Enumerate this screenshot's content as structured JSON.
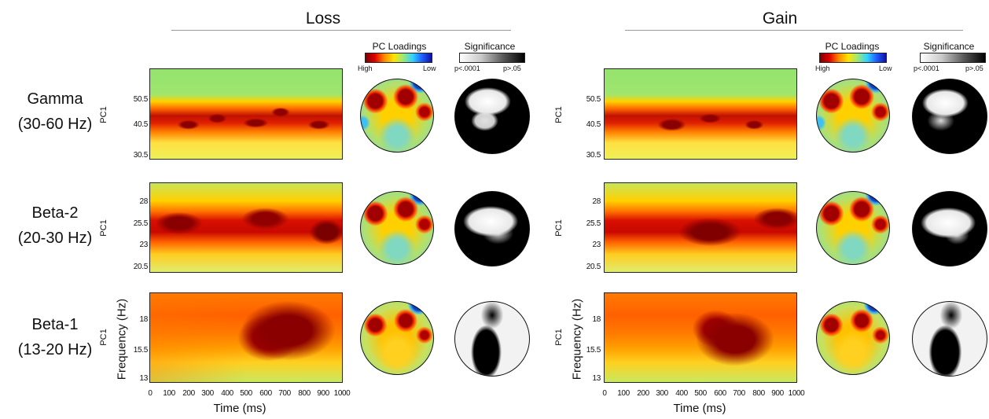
{
  "conditions": [
    {
      "title": "Loss"
    },
    {
      "title": "Gain"
    }
  ],
  "bands": [
    {
      "name": "Gamma",
      "range": "(30-60 Hz)",
      "yticks": [
        "50.5",
        "40.5",
        "30.5"
      ],
      "ylabel": "PC1"
    },
    {
      "name": "Beta-2",
      "range": "(20-30 Hz)",
      "yticks": [
        "28",
        "25.5",
        "23",
        "20.5"
      ],
      "ylabel": "PC1"
    },
    {
      "name": "Beta-1",
      "range": "(13-20 Hz)",
      "yticks": [
        "18",
        "15.5",
        "13"
      ],
      "ylabel": "PC1"
    }
  ],
  "freq_axis_label": "Frequency (Hz)",
  "time_axis_label": "Time (ms)",
  "time_ticks": [
    "0",
    "100",
    "200",
    "300",
    "400",
    "500",
    "600",
    "700",
    "800",
    "900",
    "1000"
  ],
  "pc_loadings": {
    "title": "PC Loadings",
    "high": "High",
    "low": "Low"
  },
  "significance": {
    "title": "Significance",
    "low": "p<.0001",
    "high": "p>.05"
  },
  "colors": {
    "jet_dark_red": "#7f0000",
    "jet_red": "#e00000",
    "jet_yellow": "#ffe100",
    "jet_green": "#8ee07a",
    "jet_cyan": "#38c8e6",
    "jet_blue": "#1a1aa0",
    "sig_black": "#000000",
    "sig_white": "#ffffff"
  }
}
